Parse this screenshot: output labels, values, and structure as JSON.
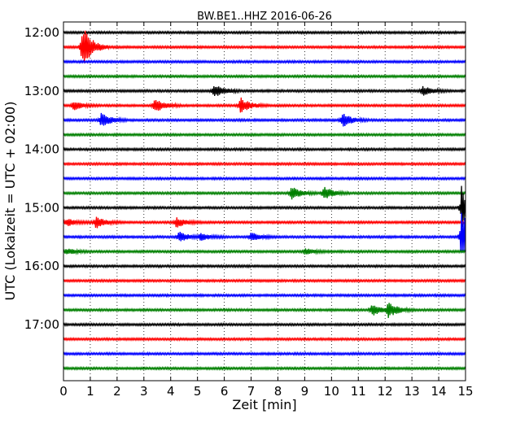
{
  "chart_data": {
    "type": "line",
    "title": "BW.BE1..HHZ 2016-06-26",
    "xlabel": "Zeit  [min]",
    "ylabel": "UTC (Lokalzeit = UTC + 02:00)",
    "xlim": [
      0,
      15
    ],
    "x_ticks": [
      "0",
      "1",
      "2",
      "3",
      "4",
      "5",
      "6",
      "7",
      "8",
      "9",
      "10",
      "11",
      "12",
      "13",
      "14",
      "15"
    ],
    "y_ticks": [
      "12:00",
      "13:00",
      "14:00",
      "15:00",
      "16:00",
      "17:00"
    ],
    "grid": "vertical dotted lines at each minute",
    "colors": [
      "#000000",
      "#ff0000",
      "#0000ff",
      "#008000"
    ],
    "traces": [
      {
        "time": "12:00",
        "color": "#000000",
        "events": []
      },
      {
        "time": "12:15",
        "color": "#ff0000",
        "events": [
          {
            "x": 0.7,
            "amp": 1.6
          }
        ]
      },
      {
        "time": "12:30",
        "color": "#0000ff",
        "events": []
      },
      {
        "time": "12:45",
        "color": "#008000",
        "events": []
      },
      {
        "time": "13:00",
        "color": "#000000",
        "events": [
          {
            "x": 5.6,
            "amp": 0.55
          },
          {
            "x": 13.4,
            "amp": 0.35
          }
        ]
      },
      {
        "time": "13:15",
        "color": "#ff0000",
        "events": [
          {
            "x": 0.35,
            "amp": 0.3
          },
          {
            "x": 3.4,
            "amp": 0.5
          },
          {
            "x": 6.6,
            "amp": 0.55
          }
        ]
      },
      {
        "time": "13:30",
        "color": "#0000ff",
        "events": [
          {
            "x": 1.4,
            "amp": 0.5
          },
          {
            "x": 10.4,
            "amp": 0.5
          }
        ]
      },
      {
        "time": "13:45",
        "color": "#008000",
        "events": []
      },
      {
        "time": "14:00",
        "color": "#000000",
        "events": []
      },
      {
        "time": "14:15",
        "color": "#ff0000",
        "events": []
      },
      {
        "time": "14:30",
        "color": "#0000ff",
        "events": []
      },
      {
        "time": "14:45",
        "color": "#008000",
        "events": [
          {
            "x": 8.5,
            "amp": 0.45
          },
          {
            "x": 9.7,
            "amp": 0.45
          }
        ]
      },
      {
        "time": "15:00",
        "color": "#000000",
        "events": [
          {
            "x": 14.85,
            "amp": 1.5
          }
        ]
      },
      {
        "time": "15:15",
        "color": "#ff0000",
        "events": [
          {
            "x": 0.1,
            "amp": 0.25
          },
          {
            "x": 1.2,
            "amp": 0.4
          },
          {
            "x": 4.2,
            "amp": 0.35
          }
        ]
      },
      {
        "time": "15:30",
        "color": "#0000ff",
        "events": [
          {
            "x": 4.3,
            "amp": 0.35
          },
          {
            "x": 5.1,
            "amp": 0.25
          },
          {
            "x": 7.0,
            "amp": 0.3
          },
          {
            "x": 14.85,
            "amp": 2.0
          }
        ]
      },
      {
        "time": "15:45",
        "color": "#008000",
        "events": [
          {
            "x": 0.1,
            "amp": 0.2
          },
          {
            "x": 9.0,
            "amp": 0.2
          }
        ]
      },
      {
        "time": "16:00",
        "color": "#000000",
        "events": []
      },
      {
        "time": "16:15",
        "color": "#ff0000",
        "events": []
      },
      {
        "time": "16:30",
        "color": "#0000ff",
        "events": []
      },
      {
        "time": "16:45",
        "color": "#008000",
        "events": [
          {
            "x": 11.5,
            "amp": 0.45
          },
          {
            "x": 12.1,
            "amp": 0.6
          }
        ]
      },
      {
        "time": "17:00",
        "color": "#000000",
        "events": []
      },
      {
        "time": "17:15",
        "color": "#ff0000",
        "events": []
      },
      {
        "time": "17:30",
        "color": "#0000ff",
        "events": []
      },
      {
        "time": "17:45",
        "color": "#008000",
        "events": []
      }
    ]
  }
}
